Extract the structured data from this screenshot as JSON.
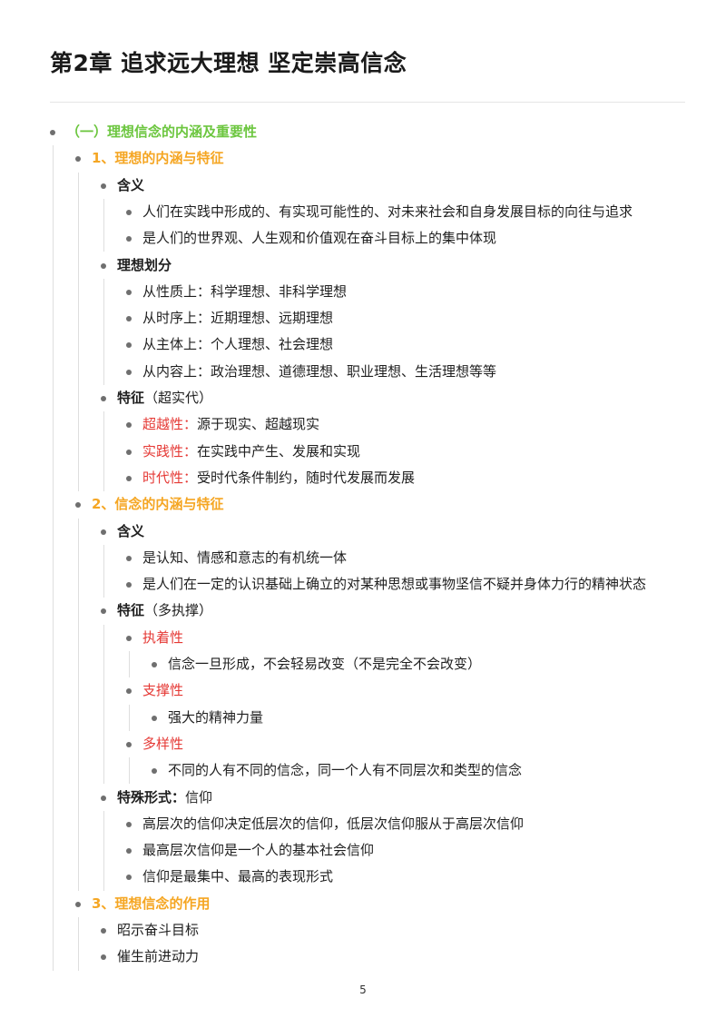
{
  "title": "第2章 追求远大理想 坚定崇高信念",
  "page_number": "5",
  "outline": [
    {
      "level": 1,
      "text": "（一）理想信念的内涵及重要性",
      "style": "green"
    },
    {
      "level": 2,
      "text": "1、理想的内涵与特征",
      "style": "orange"
    },
    {
      "level": 3,
      "text": "含义",
      "style": "bold"
    },
    {
      "level": 4,
      "text": "人们在实践中形成的、有实现可能性的、对未来社会和自身发展目标的向往与追求"
    },
    {
      "level": 4,
      "text": "是人们的世界观、人生观和价值观在奋斗目标上的集中体现"
    },
    {
      "level": 3,
      "text": "理想划分",
      "style": "bold"
    },
    {
      "level": 4,
      "text": "从性质上：科学理想、非科学理想"
    },
    {
      "level": 4,
      "text": "从时序上：近期理想、远期理想"
    },
    {
      "level": 4,
      "text": "从主体上：个人理想、社会理想"
    },
    {
      "level": 4,
      "text": "从内容上：政治理想、道德理想、职业理想、生活理想等等"
    },
    {
      "level": 3,
      "text": "特征",
      "suffix": "（超实代）",
      "style": "bold"
    },
    {
      "level": 4,
      "label": "超越性：",
      "text": "源于现实、超越现实"
    },
    {
      "level": 4,
      "label": "实践性：",
      "text": "在实践中产生、发展和实现"
    },
    {
      "level": 4,
      "label": "时代性：",
      "text": "受时代条件制约，随时代发展而发展"
    },
    {
      "level": 2,
      "text": "2、信念的内涵与特征",
      "style": "orange"
    },
    {
      "level": 3,
      "text": "含义",
      "style": "bold"
    },
    {
      "level": 4,
      "text": "是认知、情感和意志的有机统一体"
    },
    {
      "level": 4,
      "text": "是人们在一定的认识基础上确立的对某种思想或事物坚信不疑并身体力行的精神状态"
    },
    {
      "level": 3,
      "text": "特征",
      "suffix": "（多执撑）",
      "style": "bold"
    },
    {
      "level": 4,
      "label": "执着性",
      "text": ""
    },
    {
      "level": 5,
      "text": "信念一旦形成，不会轻易改变（不是完全不会改变）"
    },
    {
      "level": 4,
      "label": "支撑性",
      "text": ""
    },
    {
      "level": 5,
      "text": "强大的精神力量"
    },
    {
      "level": 4,
      "label": "多样性",
      "text": ""
    },
    {
      "level": 5,
      "text": "不同的人有不同的信念，同一个人有不同层次和类型的信念"
    },
    {
      "level": 3,
      "text": "特殊形式：",
      "suffix": "信仰",
      "style": "bold"
    },
    {
      "level": 4,
      "text": "高层次的信仰决定低层次的信仰，低层次信仰服从于高层次信仰"
    },
    {
      "level": 4,
      "text": "最高层次信仰是一个人的基本社会信仰"
    },
    {
      "level": 4,
      "text": "信仰是最集中、最高的表现形式"
    },
    {
      "level": 2,
      "text": "3、理想信念的作用",
      "style": "orange"
    },
    {
      "level": 3,
      "text": "昭示奋斗目标",
      "style": "normal"
    },
    {
      "level": 3,
      "text": "催生前进动力",
      "style": "normal"
    }
  ],
  "colors": {
    "green": "#6cc63f",
    "orange": "#f5a623",
    "red": "#e53935"
  }
}
